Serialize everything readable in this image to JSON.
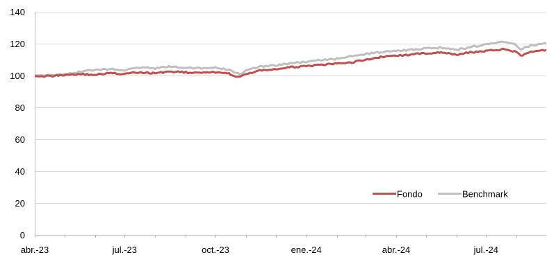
{
  "chart_data": {
    "type": "line",
    "title": "",
    "xlabel": "",
    "ylabel": "",
    "ylim": [
      0,
      140
    ],
    "yticks": [
      0,
      20,
      40,
      60,
      80,
      100,
      120,
      140
    ],
    "xlim": [
      "2023-04-01",
      "2024-08-31"
    ],
    "x_tick_labels": [
      {
        "date": "2023-04-01",
        "label": "abr.-23"
      },
      {
        "date": "2023-07-01",
        "label": "jul.-23"
      },
      {
        "date": "2023-10-01",
        "label": "oct.-23"
      },
      {
        "date": "2024-01-01",
        "label": "ene.-24"
      },
      {
        "date": "2024-04-01",
        "label": "abr.-24"
      },
      {
        "date": "2024-07-01",
        "label": "jul.-24"
      }
    ],
    "grid": {
      "horizontal": true,
      "vertical": false
    },
    "legend_position": "bottom-right",
    "x": [
      "2023-04-01",
      "2023-04-15",
      "2023-05-01",
      "2023-05-15",
      "2023-06-01",
      "2023-06-15",
      "2023-07-01",
      "2023-07-15",
      "2023-08-01",
      "2023-08-15",
      "2023-09-01",
      "2023-09-15",
      "2023-10-01",
      "2023-10-15",
      "2023-10-26",
      "2023-11-01",
      "2023-11-15",
      "2023-12-01",
      "2023-12-15",
      "2024-01-01",
      "2024-01-15",
      "2024-02-01",
      "2024-02-15",
      "2024-03-01",
      "2024-03-15",
      "2024-04-01",
      "2024-04-15",
      "2024-05-01",
      "2024-05-15",
      "2024-06-01",
      "2024-06-15",
      "2024-07-01",
      "2024-07-10",
      "2024-07-20",
      "2024-08-01",
      "2024-08-05",
      "2024-08-15",
      "2024-08-31"
    ],
    "series": [
      {
        "name": "Fondo",
        "color": "#c0504d",
        "values": [
          100,
          99.5,
          100.5,
          101,
          100.5,
          101.5,
          101,
          102,
          101.5,
          102.5,
          102,
          101.5,
          102,
          101,
          99,
          101,
          103,
          104,
          105,
          106,
          106.5,
          107.5,
          108,
          110,
          111.5,
          112.5,
          113,
          114,
          114.5,
          113,
          114.5,
          115.5,
          116,
          116.5,
          115,
          112.5,
          114.5,
          116
        ]
      },
      {
        "name": "Benchmark",
        "color": "#bfbfbf",
        "values": [
          100,
          100,
          101,
          102,
          103.5,
          104,
          103.5,
          105,
          104.5,
          105.5,
          105,
          104.5,
          105,
          103.5,
          101,
          103.5,
          105.5,
          106.5,
          107.5,
          108.5,
          109.5,
          110.5,
          112,
          113.5,
          114.5,
          115.5,
          116,
          117,
          117.5,
          116,
          118,
          119.5,
          120.5,
          121,
          119,
          116,
          119,
          120
        ]
      }
    ]
  }
}
